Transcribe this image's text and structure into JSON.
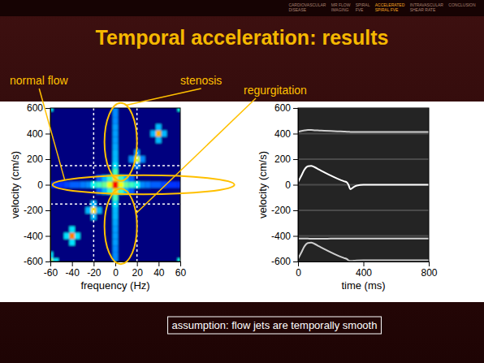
{
  "header": {
    "title": "Temporal acceleration: results",
    "nav": [
      [
        "CARDIOVASCULAR",
        "DISEASE"
      ],
      [
        "MR FLOW",
        "IMAGING"
      ],
      [
        "SPIRAL",
        "FVE"
      ],
      [
        "ACCELERATED",
        "SPIRAL FVE"
      ],
      [
        "INTRAVASCULAR",
        "SHEAR RATE"
      ],
      [
        "CONCLUSION"
      ]
    ],
    "active_nav": 3
  },
  "footnote": "assumption: flow jets are temporally smooth",
  "chart_data": [
    {
      "type": "heatmap",
      "xlabel": "frequency (Hz)",
      "ylabel": "velocity (cm/s)",
      "xlim": [
        -60,
        60
      ],
      "ylim": [
        -600,
        600
      ],
      "xticks": [
        -60,
        -40,
        -20,
        0,
        20,
        40,
        60
      ],
      "yticks": [
        -600,
        -400,
        -200,
        0,
        200,
        400,
        600
      ],
      "x_step": 5,
      "y_step": 50,
      "zlim": [
        0,
        1
      ],
      "ref_lines": {
        "x": [
          -20,
          20
        ],
        "y": [
          -150,
          150
        ]
      },
      "cells": [
        [
          0,
          -600,
          0.3
        ],
        [
          0,
          -550,
          0.3
        ],
        [
          0,
          -500,
          0.3
        ],
        [
          0,
          -450,
          0.32
        ],
        [
          0,
          -400,
          0.32
        ],
        [
          0,
          -350,
          0.32
        ],
        [
          0,
          -300,
          0.33
        ],
        [
          0,
          -250,
          0.35
        ],
        [
          0,
          -200,
          0.35
        ],
        [
          0,
          -150,
          0.4
        ],
        [
          0,
          -100,
          0.5
        ],
        [
          0,
          -50,
          0.75
        ],
        [
          0,
          0,
          1.0
        ],
        [
          0,
          50,
          0.75
        ],
        [
          0,
          100,
          0.5
        ],
        [
          0,
          150,
          0.4
        ],
        [
          0,
          200,
          0.35
        ],
        [
          0,
          250,
          0.35
        ],
        [
          0,
          300,
          0.33
        ],
        [
          0,
          350,
          0.32
        ],
        [
          0,
          400,
          0.32
        ],
        [
          0,
          450,
          0.32
        ],
        [
          0,
          500,
          0.3
        ],
        [
          0,
          550,
          0.3
        ],
        [
          0,
          600,
          0.3
        ],
        [
          -60,
          0,
          0.2
        ],
        [
          -55,
          0,
          0.2
        ],
        [
          -50,
          0,
          0.2
        ],
        [
          -45,
          0,
          0.22
        ],
        [
          -40,
          0,
          0.25
        ],
        [
          -35,
          0,
          0.25
        ],
        [
          -30,
          0,
          0.28
        ],
        [
          -25,
          0,
          0.3
        ],
        [
          -20,
          0,
          0.45
        ],
        [
          -15,
          0,
          0.5
        ],
        [
          -10,
          0,
          0.55
        ],
        [
          -5,
          0,
          0.7
        ],
        [
          5,
          0,
          0.7
        ],
        [
          10,
          0,
          0.55
        ],
        [
          15,
          0,
          0.5
        ],
        [
          20,
          0,
          0.45
        ],
        [
          25,
          0,
          0.3
        ],
        [
          30,
          0,
          0.28
        ],
        [
          35,
          0,
          0.25
        ],
        [
          40,
          0,
          0.25
        ],
        [
          45,
          0,
          0.22
        ],
        [
          50,
          0,
          0.2
        ],
        [
          55,
          0,
          0.2
        ],
        [
          60,
          0,
          0.2
        ],
        [
          -15,
          -50,
          0.25
        ],
        [
          -10,
          -50,
          0.35
        ],
        [
          -5,
          -50,
          0.5
        ],
        [
          5,
          -50,
          0.5
        ],
        [
          10,
          -50,
          0.35
        ],
        [
          15,
          -50,
          0.25
        ],
        [
          -15,
          50,
          0.25
        ],
        [
          -10,
          50,
          0.35
        ],
        [
          -5,
          50,
          0.5
        ],
        [
          5,
          50,
          0.5
        ],
        [
          10,
          50,
          0.35
        ],
        [
          15,
          50,
          0.25
        ],
        [
          20,
          200,
          0.65
        ],
        [
          15,
          200,
          0.3
        ],
        [
          25,
          200,
          0.3
        ],
        [
          20,
          150,
          0.3
        ],
        [
          20,
          250,
          0.3
        ],
        [
          -20,
          -200,
          0.75
        ],
        [
          -25,
          -200,
          0.35
        ],
        [
          -15,
          -200,
          0.35
        ],
        [
          -20,
          -250,
          0.35
        ],
        [
          -20,
          -150,
          0.35
        ],
        [
          40,
          400,
          0.8
        ],
        [
          35,
          400,
          0.35
        ],
        [
          45,
          400,
          0.35
        ],
        [
          40,
          350,
          0.35
        ],
        [
          40,
          450,
          0.35
        ],
        [
          -40,
          -400,
          0.85
        ],
        [
          -45,
          -400,
          0.4
        ],
        [
          -35,
          -400,
          0.4
        ],
        [
          -40,
          -450,
          0.4
        ],
        [
          -40,
          -350,
          0.4
        ],
        [
          -60,
          -600,
          0.6
        ],
        [
          -55,
          -600,
          0.4
        ],
        [
          -60,
          -550,
          0.4
        ],
        [
          60,
          600,
          0.45
        ],
        [
          -60,
          600,
          0.4
        ],
        [
          60,
          -600,
          0.45
        ]
      ],
      "annotations": [
        {
          "text": "normal flow",
          "ellipse": {
            "x": [
              -58,
              110
            ],
            "y": [
              -75,
              75
            ]
          }
        },
        {
          "text": "stenosis",
          "ellipse": {
            "x": [
              -10,
              20
            ],
            "y": [
              30,
              640
            ]
          }
        },
        {
          "text": "regurgitation",
          "ellipse": {
            "x": [
              -10,
              20
            ],
            "y": [
              -620,
              -30
            ]
          }
        }
      ]
    },
    {
      "type": "line",
      "xlabel": "time (ms)",
      "ylabel": "velocity (cm/s)",
      "xlim": [
        0,
        800
      ],
      "ylim": [
        -600,
        600
      ],
      "xticks": [
        0,
        400,
        800
      ],
      "yticks": [
        -600,
        -400,
        -200,
        0,
        200,
        400,
        600
      ],
      "grid": true,
      "x": [
        0,
        20,
        40,
        60,
        80,
        100,
        130,
        160,
        200,
        240,
        280,
        300,
        310,
        320,
        340,
        360,
        400,
        500,
        600,
        700,
        800
      ],
      "series": [
        {
          "color": "#ffffff",
          "values": [
            20,
            70,
            120,
            145,
            148,
            138,
            118,
            98,
            72,
            48,
            28,
            18,
            -5,
            -35,
            -18,
            -6,
            0,
            0,
            0,
            0,
            0
          ]
        },
        {
          "color": "#cfcfcf",
          "values": [
            415,
            420,
            425,
            428,
            428,
            426,
            424,
            422,
            420,
            418,
            416,
            415,
            414,
            413,
            413,
            413,
            413,
            412,
            412,
            412,
            412
          ]
        },
        {
          "color": "#cfcfcf",
          "values": [
            -420,
            -420,
            -421,
            -421,
            -422,
            -422,
            -422,
            -422,
            -421,
            -421,
            -420,
            -420,
            -420,
            -420,
            -420,
            -420,
            -420,
            -420,
            -420,
            -420,
            -420
          ]
        },
        {
          "color": "#cfcfcf",
          "values": [
            -580,
            -530,
            -480,
            -455,
            -452,
            -462,
            -482,
            -502,
            -528,
            -552,
            -572,
            -582,
            -592,
            -596,
            -594,
            -592,
            -590,
            -590,
            -590,
            -590,
            -590
          ]
        }
      ]
    }
  ]
}
